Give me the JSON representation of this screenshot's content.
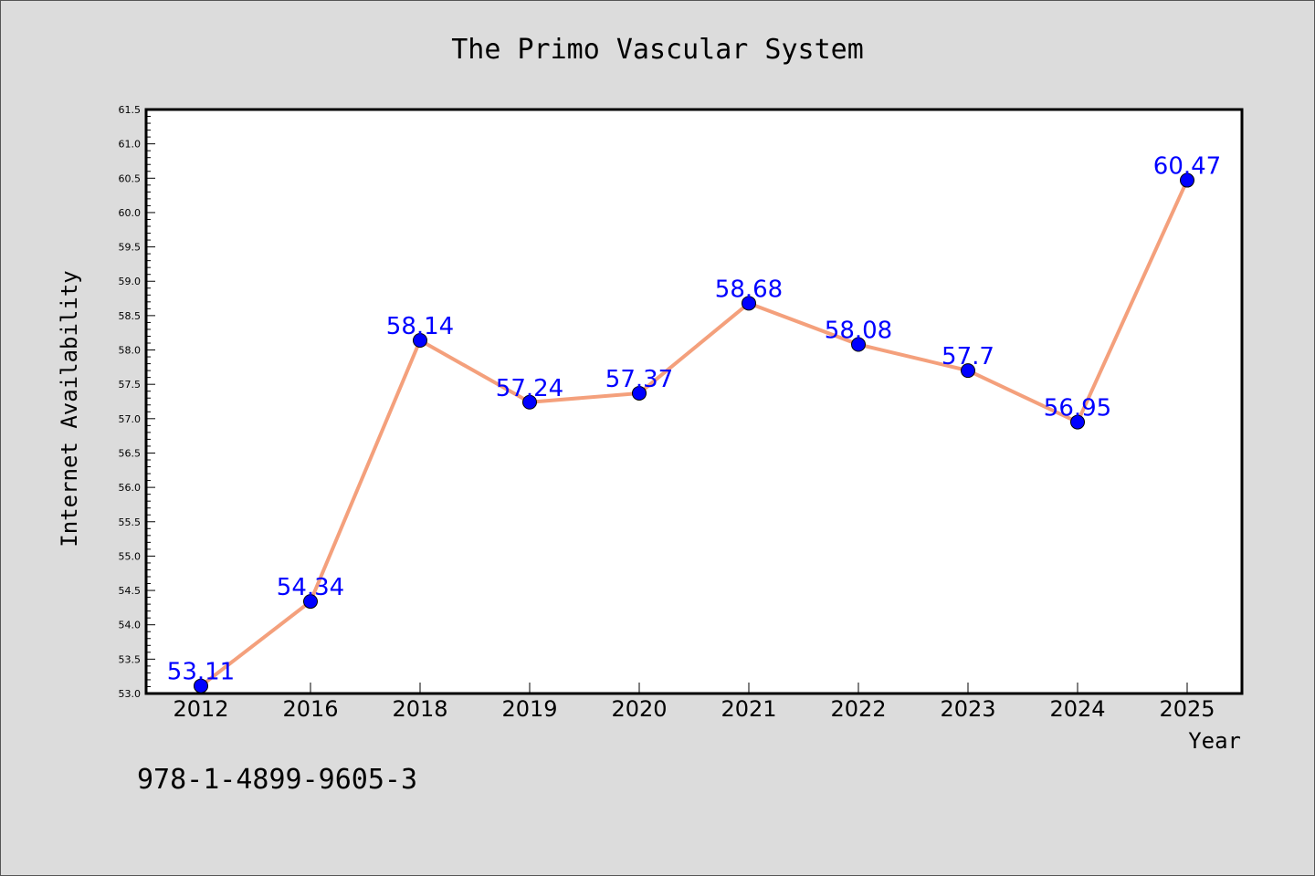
{
  "chart_data": {
    "type": "line",
    "title": "The Primo Vascular System",
    "xlabel": "Year",
    "ylabel": "Internet Availability",
    "categories": [
      "2012",
      "2016",
      "2018",
      "2019",
      "2020",
      "2021",
      "2022",
      "2023",
      "2024",
      "2025"
    ],
    "values": [
      53.11,
      54.34,
      58.14,
      57.24,
      57.37,
      58.68,
      58.08,
      57.7,
      56.95,
      60.47
    ],
    "data_labels": [
      "53.11",
      "54.34",
      "58.14",
      "57.24",
      "57.37",
      "58.68",
      "58.08",
      "57.7",
      "56.95",
      "60.47"
    ],
    "ylim": [
      53.0,
      61.5
    ],
    "yticks": [
      "53.0",
      "53.5",
      "54.0",
      "54.5",
      "55.0",
      "55.5",
      "56.0",
      "56.5",
      "57.0",
      "57.5",
      "58.0",
      "58.5",
      "59.0",
      "59.5",
      "60.0",
      "60.5",
      "61.0",
      "61.5"
    ],
    "grid": false,
    "line_color": "#f4a07c",
    "marker_color": "#0000ff",
    "label_color": "#0000ff"
  },
  "footer": {
    "isbn": "978-1-4899-9605-3"
  }
}
